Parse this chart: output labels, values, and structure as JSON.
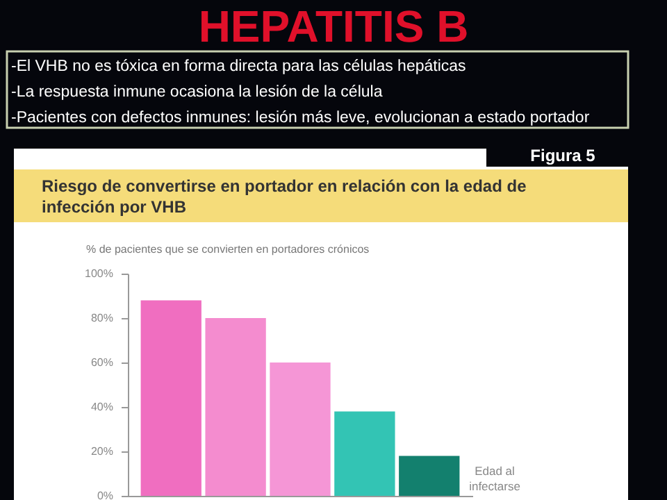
{
  "chart_data": {
    "type": "bar",
    "title": "Riesgo de convertirse en portador en relación con la edad de infección por VHB",
    "ylabel": "% de pacientes que se convierten en portadores crónicos",
    "xlabel": "Edad al infectarse",
    "annotations": [
      "HEPATITIS B",
      "-El VHB no es tóxica en forma directa para las células hepáticas",
      "-La respuesta inmune ocasiona la lesión de la célula",
      "-Pacientes con defectos inmunes: lesión más leve, evolucionan a estado portador",
      "Figura 5"
    ],
    "categories": [
      null,
      null,
      null,
      null,
      null
    ],
    "values": [
      88,
      80,
      60,
      38,
      18
    ],
    "colors": [
      "#f06ec0",
      "#f48ccf",
      "#f596d6",
      "#33c4b4",
      "#13806e"
    ],
    "ylim": [
      0,
      100
    ],
    "yticks": [
      {
        "value": 0,
        "label": "0%"
      },
      {
        "value": 20,
        "label": "20%"
      },
      {
        "value": 40,
        "label": "40%"
      },
      {
        "value": 60,
        "label": "60%"
      },
      {
        "value": 80,
        "label": "80%"
      },
      {
        "value": 100,
        "label": "100%"
      }
    ],
    "tick_labels": "y",
    "grid": false,
    "legend": false
  }
}
